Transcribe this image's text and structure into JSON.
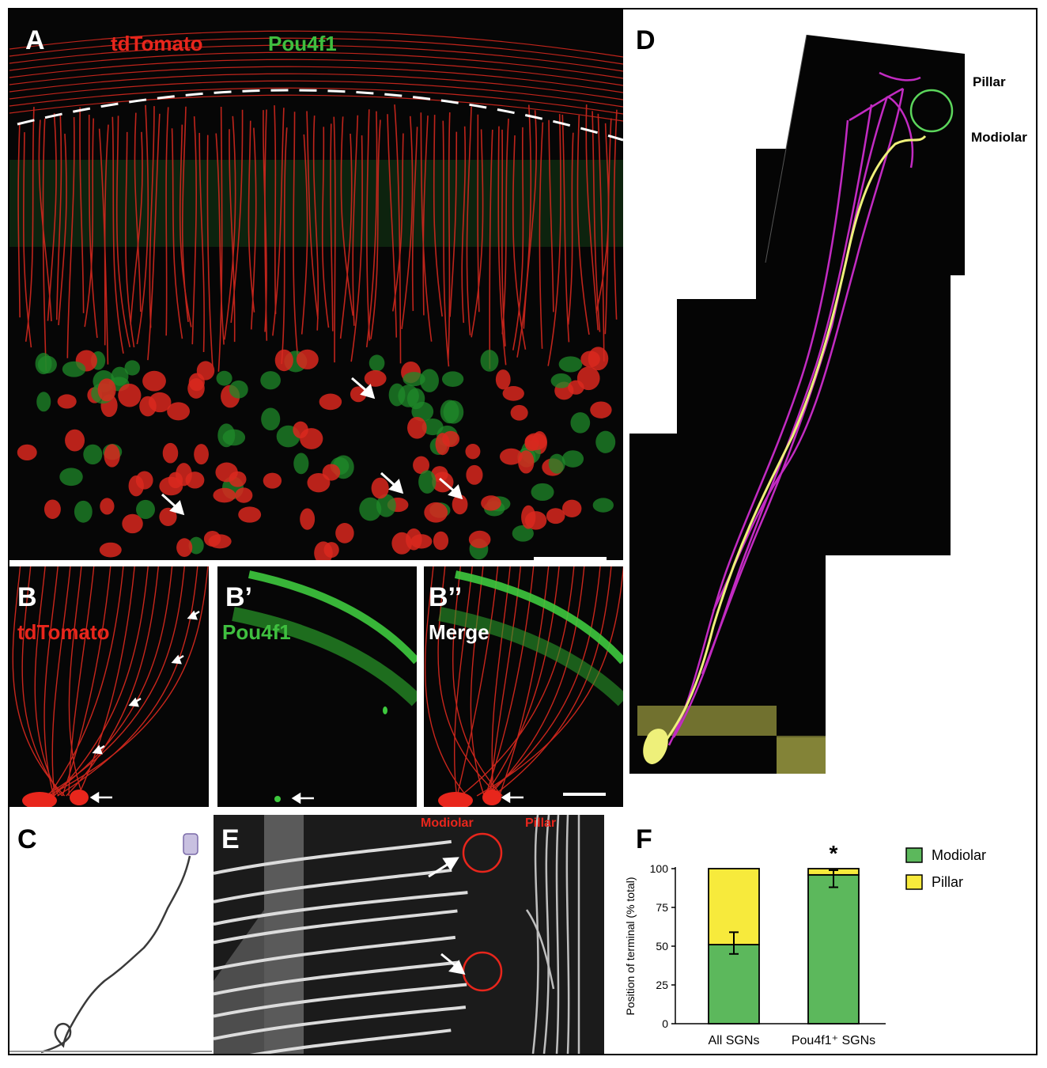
{
  "panels": {
    "A": {
      "label": "A",
      "channel_red": "tdTomato",
      "channel_green": "Pou4f1"
    },
    "B": {
      "label": "B",
      "channel": "tdTomato"
    },
    "B1": {
      "label": "B’",
      "channel": "Pou4f1"
    },
    "B2": {
      "label": "B’’",
      "channel": "Merge"
    },
    "C": {
      "label": "C"
    },
    "D": {
      "label": "D",
      "annot_pillar": "Pillar",
      "annot_modiolar": "Modiolar"
    },
    "E": {
      "label": "E",
      "annot_modiolar": "Modiolar",
      "annot_pillar": "Pillar"
    },
    "F": {
      "label": "F"
    }
  },
  "colors": {
    "red": "#e8261c",
    "green": "#3fbf3f",
    "magenta": "#c22bc2",
    "yellow": "#eef07a",
    "modiolar_bar": "#5cb85c",
    "pillar_bar": "#f7ea3c"
  },
  "chart_data": {
    "type": "bar",
    "stacked": true,
    "categories": [
      "All SGNs",
      "Pou4f1⁺ SGNs"
    ],
    "series": [
      {
        "name": "Modiolar",
        "values": [
          51,
          96
        ]
      },
      {
        "name": "Pillar",
        "values": [
          49,
          4
        ]
      }
    ],
    "error_bars": [
      {
        "center": 51,
        "low": 45,
        "high": 59
      },
      {
        "center": 96,
        "low": 88,
        "high": 99
      }
    ],
    "significance": [
      "",
      "*"
    ],
    "ylabel": "Position of terminal (% total)",
    "yticks": [
      0,
      25,
      50,
      75,
      100
    ],
    "ylim": [
      0,
      100
    ],
    "legend": "right"
  }
}
